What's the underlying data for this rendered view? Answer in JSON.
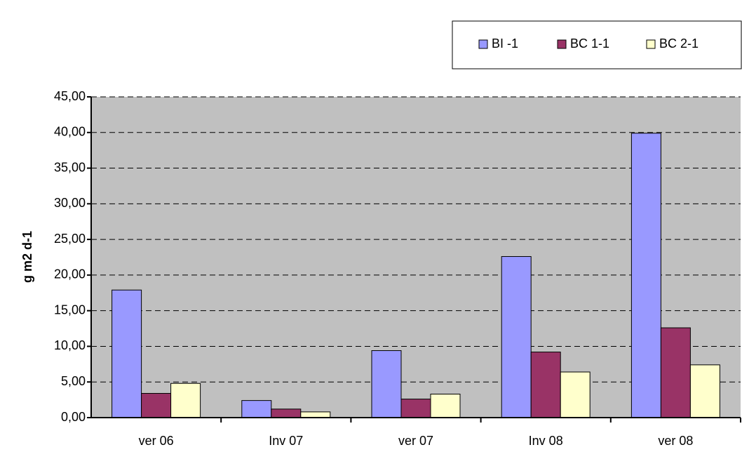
{
  "chart_data": {
    "type": "bar",
    "y_label": "g m2 d-1",
    "categories": [
      "ver 06",
      "Inv 07",
      "ver 07",
      "Inv 08",
      "ver 08"
    ],
    "series": [
      {
        "name": "BI -1",
        "color": "#9999ff",
        "values": [
          17.9,
          2.4,
          9.4,
          22.6,
          39.9
        ]
      },
      {
        "name": "BC 1-1",
        "color": "#993366",
        "values": [
          3.4,
          1.2,
          2.6,
          9.2,
          12.6
        ]
      },
      {
        "name": "BC 2-1",
        "color": "#ffffcc",
        "values": [
          4.8,
          0.8,
          3.3,
          6.4,
          7.4
        ]
      }
    ],
    "ylim": [
      0,
      45
    ],
    "yticks": [
      {
        "value": 0,
        "label": "0,00"
      },
      {
        "value": 5,
        "label": "5,00"
      },
      {
        "value": 10,
        "label": "10,00"
      },
      {
        "value": 15,
        "label": "15,00"
      },
      {
        "value": 20,
        "label": "20,00"
      },
      {
        "value": 25,
        "label": "25,00"
      },
      {
        "value": 30,
        "label": "30,00"
      },
      {
        "value": 35,
        "label": "35,00"
      },
      {
        "value": 40,
        "label": "40,00"
      },
      {
        "value": 45,
        "label": "45,00"
      }
    ],
    "grid": true,
    "legend": "top-right"
  }
}
